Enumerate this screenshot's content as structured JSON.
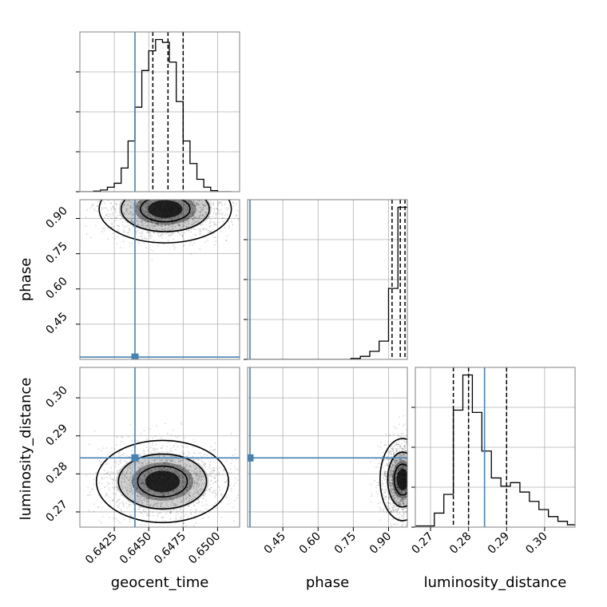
{
  "chart_data": {
    "type": "corner",
    "parameters": [
      "geocent_time",
      "phase",
      "luminosity_distance"
    ],
    "truths": {
      "geocent_time": 0.644,
      "phase": 0.31,
      "luminosity_distance": 0.2842
    },
    "colors": {
      "truth": "#4682b4",
      "grid": "#b0b0b0",
      "hist": "#000000",
      "frame": "#808080"
    },
    "grid": true,
    "axes": {
      "geocent_time": {
        "range": [
          0.64,
          0.6516
        ],
        "ticks": [
          0.6425,
          0.645,
          0.6475,
          0.65
        ],
        "tick_labels": [
          "0.6425",
          "0.6450",
          "0.6475",
          "0.6500"
        ]
      },
      "phase": {
        "range": [
          0.3,
          0.98
        ],
        "ticks": [
          0.45,
          0.6,
          0.75,
          0.9
        ],
        "tick_labels": [
          "0.45",
          "0.60",
          "0.75",
          "0.90"
        ]
      },
      "luminosity_distance": {
        "range": [
          0.266,
          0.308
        ],
        "ticks": [
          0.27,
          0.28,
          0.29,
          0.3
        ],
        "tick_labels": [
          "0.27",
          "0.28",
          "0.29",
          "0.30"
        ]
      }
    },
    "marginals": {
      "geocent_time": {
        "bins": [
          0.64,
          0.6405,
          0.641,
          0.6415,
          0.642,
          0.6425,
          0.643,
          0.6435,
          0.644,
          0.6445,
          0.645,
          0.6455,
          0.646,
          0.6465,
          0.647,
          0.6475,
          0.648,
          0.6485,
          0.649,
          0.6495,
          0.65,
          0.6505,
          0.651
        ],
        "counts": [
          0,
          0,
          1,
          3,
          8,
          15,
          42,
          90,
          150,
          215,
          250,
          270,
          265,
          230,
          160,
          90,
          50,
          22,
          8,
          2,
          0,
          0
        ],
        "quantiles": [
          0.6453,
          0.6464,
          0.6475
        ]
      },
      "phase": {
        "bins": [
          0.3,
          0.34,
          0.38,
          0.42,
          0.46,
          0.5,
          0.54,
          0.58,
          0.62,
          0.66,
          0.7,
          0.74,
          0.78,
          0.82,
          0.86,
          0.9,
          0.94,
          0.98
        ],
        "counts": [
          0,
          0,
          0,
          0,
          0,
          0,
          0,
          0,
          0,
          0,
          0,
          1,
          3,
          8,
          18,
          70,
          150
        ],
        "quantiles": [
          0.915,
          0.95,
          0.97
        ]
      },
      "luminosity_distance": {
        "bins": [
          0.266,
          0.2685,
          0.271,
          0.2735,
          0.276,
          0.2785,
          0.281,
          0.2835,
          0.286,
          0.2885,
          0.291,
          0.2935,
          0.296,
          0.2985,
          0.301,
          0.3035,
          0.306,
          0.308
        ],
        "counts": [
          1,
          1,
          12,
          28,
          100,
          130,
          98,
          65,
          42,
          35,
          38,
          30,
          22,
          15,
          9,
          5,
          2
        ],
        "quantiles": [
          0.276,
          0.28,
          0.29
        ]
      }
    },
    "joint_2d": [
      {
        "x": "geocent_time",
        "y": "phase",
        "mode": [
          0.6462,
          0.94
        ],
        "spread": [
          0.002,
          0.06
        ]
      },
      {
        "x": "geocent_time",
        "y": "luminosity_distance",
        "mode": [
          0.646,
          0.278
        ],
        "spread": [
          0.002,
          0.0045
        ]
      },
      {
        "x": "phase",
        "y": "luminosity_distance",
        "mode": [
          0.96,
          0.2785
        ],
        "spread": [
          0.04,
          0.0045
        ]
      }
    ]
  }
}
